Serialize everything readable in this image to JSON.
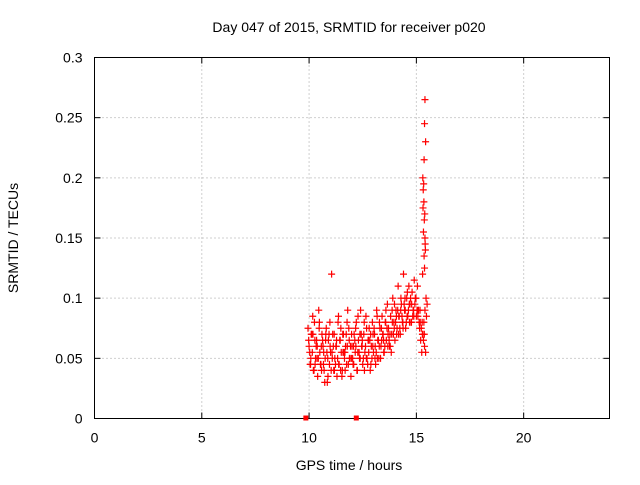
{
  "chart_data": {
    "type": "scatter",
    "title": "Day 047 of 2015, SRMTID for receiver p020",
    "xlabel": "GPS time / hours",
    "ylabel": "SRMTID / TECUs",
    "xlim": [
      0,
      24
    ],
    "ylim": [
      0,
      0.3
    ],
    "x_ticks": [
      0,
      5,
      10,
      15,
      20
    ],
    "x_tick_labels": [
      "0",
      "5",
      "10",
      "15",
      "20"
    ],
    "y_ticks": [
      0,
      0.05,
      0.1,
      0.15,
      0.2,
      0.25,
      0.3
    ],
    "y_tick_labels": [
      "0",
      "0.05",
      "0.1",
      "0.15",
      "0.2",
      "0.25",
      "0.3"
    ],
    "grid": true,
    "marker": "plus",
    "color": "#ff0000",
    "baseline_markers_x": [
      9.85,
      12.2
    ],
    "series": [
      {
        "name": "SRMTID",
        "x": [
          9.95,
          10.0,
          10.05,
          10.1,
          10.15,
          10.2,
          10.25,
          10.3,
          10.35,
          10.4,
          10.45,
          10.5,
          10.55,
          10.6,
          10.65,
          10.7,
          10.75,
          10.8,
          10.85,
          10.9,
          10.95,
          11.0,
          11.05,
          11.1,
          11.15,
          11.2,
          11.25,
          11.3,
          11.35,
          11.4,
          11.45,
          11.5,
          11.55,
          11.6,
          11.65,
          11.7,
          11.75,
          11.8,
          11.85,
          11.9,
          11.95,
          12.0,
          12.05,
          12.1,
          12.15,
          12.2,
          12.25,
          12.3,
          12.35,
          12.4,
          12.45,
          12.5,
          12.55,
          12.6,
          12.65,
          12.7,
          12.75,
          12.8,
          12.85,
          12.9,
          12.95,
          13.0,
          13.05,
          13.1,
          13.15,
          13.2,
          13.25,
          13.3,
          13.35,
          13.4,
          13.45,
          13.5,
          13.55,
          13.6,
          13.65,
          13.7,
          13.75,
          13.8,
          13.85,
          13.9,
          13.95,
          14.0,
          14.05,
          14.1,
          14.15,
          14.2,
          14.25,
          14.3,
          14.35,
          14.4,
          14.45,
          14.5,
          14.55,
          14.6,
          14.65,
          14.7,
          14.75,
          14.8,
          14.85,
          14.9,
          14.95,
          15.0,
          15.05,
          15.1,
          15.15,
          15.2,
          15.25,
          15.3,
          15.35,
          15.4,
          15.45,
          15.5,
          9.98,
          10.08,
          10.18,
          10.28,
          10.38,
          10.48,
          10.58,
          10.68,
          10.78,
          10.88,
          10.98,
          11.08,
          11.18,
          11.28,
          11.38,
          11.48,
          11.58,
          11.68,
          11.78,
          11.88,
          11.98,
          12.08,
          12.18,
          12.28,
          12.38,
          12.48,
          12.58,
          12.68,
          12.78,
          12.88,
          12.98,
          13.08,
          13.18,
          13.28,
          13.38,
          13.48,
          13.58,
          13.68,
          13.78,
          13.88,
          13.98,
          14.08,
          14.18,
          14.28,
          14.38,
          14.48,
          14.58,
          14.68,
          14.78,
          14.88,
          14.98,
          15.08,
          15.18,
          15.28,
          15.38,
          10.03,
          10.13,
          10.23,
          10.33,
          10.43,
          10.53,
          10.63,
          10.73,
          10.83,
          10.93,
          11.03,
          11.13,
          11.23,
          11.33,
          11.43,
          11.53,
          11.63,
          11.73,
          11.83,
          11.93,
          12.03,
          12.13,
          12.23,
          12.33,
          12.43,
          12.53,
          12.63,
          12.73,
          12.83,
          12.93,
          13.03,
          13.13,
          13.23,
          13.33,
          13.43,
          13.53,
          13.63,
          13.73,
          13.83,
          13.93,
          14.03,
          14.13,
          14.23,
          14.33,
          14.43,
          14.53,
          14.63,
          14.73,
          14.83,
          14.93,
          15.03,
          15.13,
          15.23,
          15.33,
          15.43,
          10.07,
          10.17,
          10.27,
          10.37,
          10.47,
          10.57,
          10.67,
          10.77,
          10.87,
          10.97,
          11.07,
          11.17,
          11.27,
          11.37,
          11.47,
          11.57,
          11.67,
          11.77,
          11.87,
          11.97,
          12.07,
          12.17,
          12.27,
          12.37,
          12.47,
          12.57,
          12.67,
          12.77,
          12.87,
          12.97,
          13.07,
          13.17,
          13.27,
          13.37,
          13.47,
          13.57,
          13.67,
          13.77,
          13.87,
          13.97,
          14.07,
          14.17,
          14.27,
          14.37,
          14.47,
          14.57,
          14.67,
          14.77,
          14.87,
          14.97,
          15.07,
          15.17,
          15.27,
          15.37,
          15.47,
          15.3,
          15.32,
          15.35,
          15.37,
          15.4,
          15.42,
          15.36,
          15.38,
          15.33,
          15.41,
          15.39,
          15.34,
          15.31,
          15.43,
          15.29,
          15.36,
          15.38,
          15.4
        ],
        "y": [
          0.075,
          0.06,
          0.045,
          0.07,
          0.055,
          0.04,
          0.08,
          0.05,
          0.065,
          0.035,
          0.09,
          0.055,
          0.045,
          0.07,
          0.06,
          0.04,
          0.05,
          0.075,
          0.03,
          0.065,
          0.045,
          0.055,
          0.12,
          0.07,
          0.04,
          0.05,
          0.06,
          0.035,
          0.08,
          0.045,
          0.065,
          0.055,
          0.04,
          0.07,
          0.05,
          0.06,
          0.045,
          0.09,
          0.075,
          0.05,
          0.035,
          0.06,
          0.045,
          0.07,
          0.055,
          0.08,
          0.04,
          0.065,
          0.05,
          0.09,
          0.06,
          0.045,
          0.07,
          0.055,
          0.085,
          0.05,
          0.065,
          0.075,
          0.04,
          0.06,
          0.08,
          0.055,
          0.07,
          0.045,
          0.09,
          0.065,
          0.05,
          0.075,
          0.06,
          0.085,
          0.07,
          0.055,
          0.08,
          0.065,
          0.095,
          0.075,
          0.06,
          0.085,
          0.07,
          0.1,
          0.08,
          0.065,
          0.09,
          0.075,
          0.11,
          0.085,
          0.07,
          0.095,
          0.08,
          0.12,
          0.09,
          0.075,
          0.1,
          0.085,
          0.11,
          0.095,
          0.08,
          0.105,
          0.09,
          0.115,
          0.1,
          0.085,
          0.11,
          0.09,
          0.075,
          0.065,
          0.055,
          0.07,
          0.08,
          0.09,
          0.1,
          0.095,
          0.065,
          0.05,
          0.07,
          0.045,
          0.06,
          0.08,
          0.04,
          0.055,
          0.07,
          0.035,
          0.06,
          0.05,
          0.04,
          0.065,
          0.045,
          0.075,
          0.055,
          0.04,
          0.06,
          0.05,
          0.07,
          0.045,
          0.06,
          0.085,
          0.05,
          0.065,
          0.04,
          0.075,
          0.055,
          0.045,
          0.07,
          0.06,
          0.05,
          0.08,
          0.065,
          0.055,
          0.09,
          0.07,
          0.06,
          0.08,
          0.095,
          0.07,
          0.085,
          0.1,
          0.075,
          0.09,
          0.105,
          0.08,
          0.095,
          0.085,
          0.1,
          0.09,
          0.08,
          0.07,
          0.06,
          0.055,
          0.07,
          0.04,
          0.06,
          0.05,
          0.045,
          0.065,
          0.03,
          0.055,
          0.07,
          0.04,
          0.06,
          0.045,
          0.05,
          0.065,
          0.035,
          0.055,
          0.07,
          0.045,
          0.06,
          0.05,
          0.065,
          0.04,
          0.055,
          0.07,
          0.05,
          0.06,
          0.045,
          0.065,
          0.05,
          0.075,
          0.055,
          0.065,
          0.05,
          0.07,
          0.06,
          0.075,
          0.065,
          0.055,
          0.07,
          0.08,
          0.09,
          0.075,
          0.085,
          0.095,
          0.08,
          0.09,
          0.1,
          0.085,
          0.095,
          0.09,
          0.08,
          0.075,
          0.065,
          0.055,
          0.045,
          0.085,
          0.065,
          0.05,
          0.075,
          0.06,
          0.045,
          0.065,
          0.05,
          0.08,
          0.055,
          0.07,
          0.06,
          0.085,
          0.04,
          0.07,
          0.055,
          0.08,
          0.065,
          0.05,
          0.06,
          0.075,
          0.055,
          0.07,
          0.06,
          0.08,
          0.05,
          0.065,
          0.07,
          0.06,
          0.05,
          0.085,
          0.06,
          0.075,
          0.065,
          0.08,
          0.06,
          0.07,
          0.09,
          0.075,
          0.085,
          0.07,
          0.09,
          0.08,
          0.1,
          0.085,
          0.095,
          0.08,
          0.09,
          0.1,
          0.085,
          0.09,
          0.08,
          0.07,
          0.085,
          0.2,
          0.19,
          0.18,
          0.165,
          0.15,
          0.14,
          0.135,
          0.125,
          0.155,
          0.145,
          0.17,
          0.195,
          0.175,
          0.23,
          0.12,
          0.215,
          0.245,
          0.265
        ]
      }
    ]
  }
}
